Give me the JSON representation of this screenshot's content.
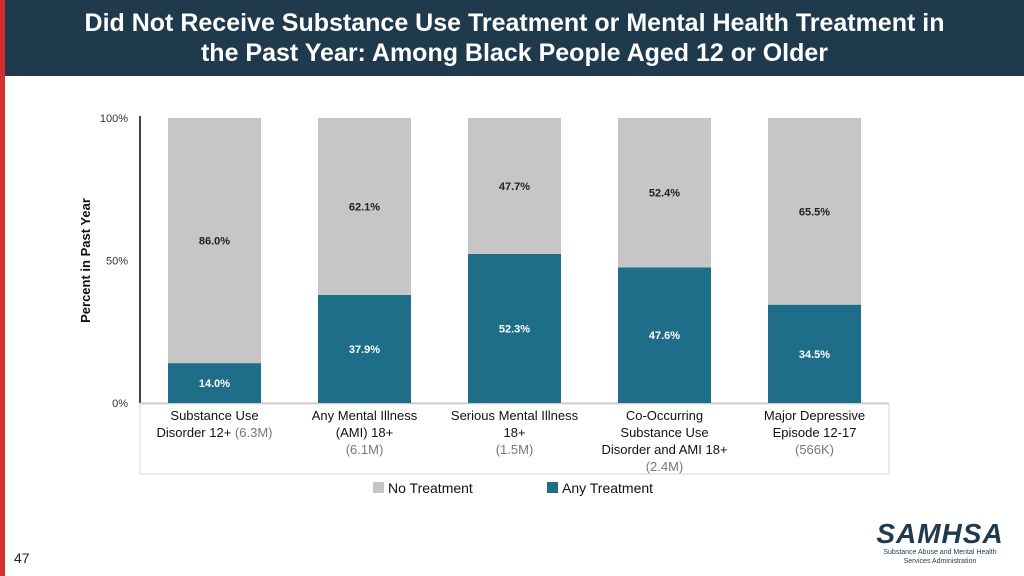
{
  "header": {
    "title_line1": "Did Not Receive Substance Use Treatment or Mental Health Treatment in",
    "title_line2": "the Past Year: Among Black People Aged 12 or Older"
  },
  "page_number": "47",
  "logo": {
    "name": "SAMHSA",
    "subtitle_line1": "Substance Abuse and Mental Health",
    "subtitle_line2": "Services Administration"
  },
  "colors": {
    "accent": "#d32f2f",
    "header_bg": "#1f3a4d",
    "no_treatment": "#c6c6c6",
    "any_treatment": "#1e6e8a"
  },
  "chart_data": {
    "type": "bar",
    "stacked": true,
    "ylabel": "Percent in Past Year",
    "ylim": [
      0,
      100
    ],
    "yticks": [
      "0%",
      "50%",
      "100%"
    ],
    "categories": [
      {
        "lines": [
          "Substance Use"
        ],
        "line2": "Disorder 12+",
        "n": "(6.3M)"
      },
      {
        "lines": [
          "Any Mental Illness",
          "(AMI) 18+"
        ],
        "n": "(6.1M)"
      },
      {
        "lines": [
          "Serious Mental Illness",
          "18+"
        ],
        "n": "(1.5M)"
      },
      {
        "lines": [
          "Co-Occurring",
          "Substance Use",
          "Disorder and AMI 18+"
        ],
        "n": "(2.4M)"
      },
      {
        "lines": [
          "Major Depressive",
          "Episode 12-17"
        ],
        "n": "(566K)"
      }
    ],
    "series": [
      {
        "name": "Any Treatment",
        "color": "#1e6e8a",
        "values": [
          14.0,
          37.9,
          52.3,
          47.6,
          34.5
        ],
        "labels": [
          "14.0%",
          "37.9%",
          "52.3%",
          "47.6%",
          "34.5%"
        ]
      },
      {
        "name": "No Treatment",
        "color": "#c6c6c6",
        "values": [
          86.0,
          62.1,
          47.7,
          52.4,
          65.5
        ],
        "labels": [
          "86.0%",
          "62.1%",
          "47.7%",
          "52.4%",
          "65.5%"
        ]
      }
    ],
    "legend_order": [
      "No Treatment",
      "Any Treatment"
    ],
    "legend_position": "bottom"
  }
}
